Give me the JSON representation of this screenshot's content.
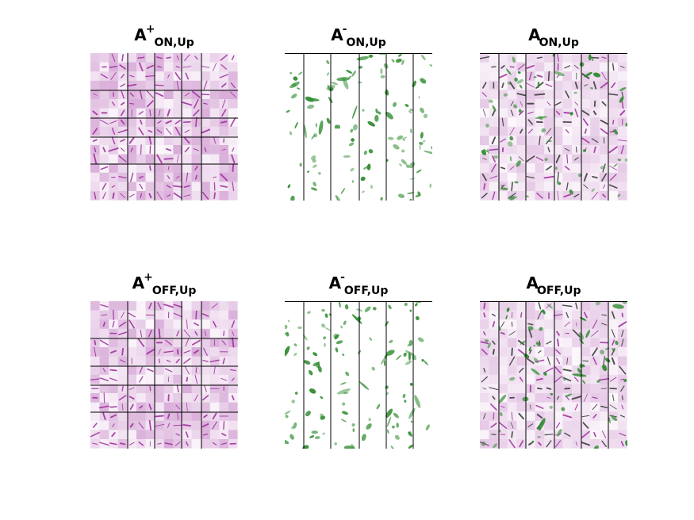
{
  "figure": {
    "panels": [
      {
        "id": "p1",
        "title_main": "A",
        "title_sup": "+",
        "title_sub": "ON,Up",
        "kind": "positive"
      },
      {
        "id": "p2",
        "title_main": "A",
        "title_sup": "-",
        "title_sub": "ON,Up",
        "kind": "negative"
      },
      {
        "id": "p3",
        "title_main": "A",
        "title_sup": "",
        "title_sub": "ON,Up",
        "kind": "combined"
      },
      {
        "id": "p4",
        "title_main": "A",
        "title_sup": "+",
        "title_sub": "OFF,Up",
        "kind": "positive"
      },
      {
        "id": "p5",
        "title_main": "A",
        "title_sup": "-",
        "title_sub": "OFF,Up",
        "kind": "negative"
      },
      {
        "id": "p6",
        "title_main": "A",
        "title_sup": "",
        "title_sub": "OFF,Up",
        "kind": "combined"
      }
    ],
    "colors": {
      "positive": "#9c2a9c",
      "negative": "#2e8b2e",
      "grid_line": "#000000",
      "background": "#ffffff"
    }
  }
}
